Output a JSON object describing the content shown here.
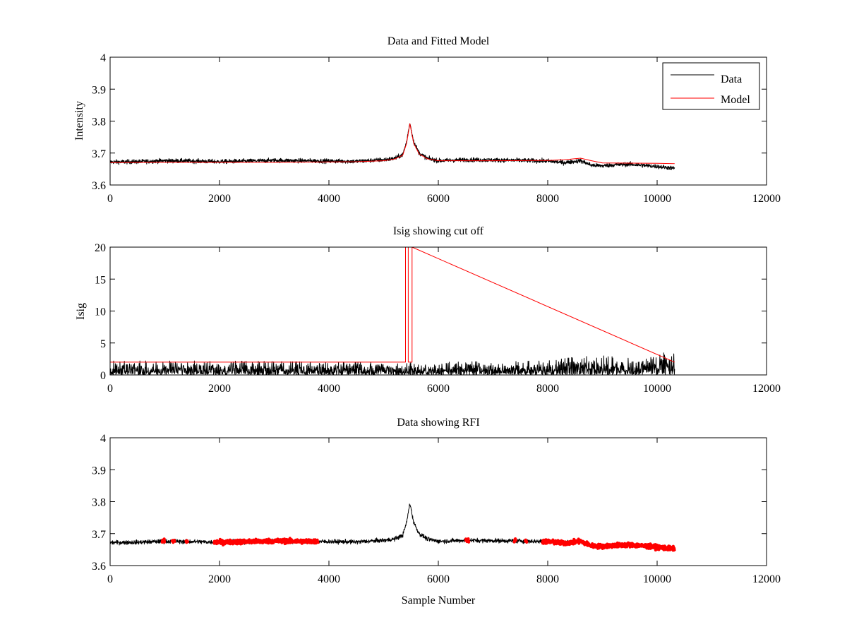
{
  "colors": {
    "data": "#000000",
    "model": "#ff0000",
    "axes": "#000000",
    "background": "#ffffff"
  },
  "chart_data": [
    {
      "type": "line",
      "title": "Data and Fitted Model",
      "xlabel": "",
      "ylabel": "Intensity",
      "xlim": [
        0,
        12000
      ],
      "ylim": [
        3.6,
        4.0
      ],
      "x_ticks": [
        0,
        2000,
        4000,
        6000,
        8000,
        10000,
        12000
      ],
      "y_ticks": [
        3.6,
        3.7,
        3.8,
        3.9,
        4.0
      ],
      "x_tick_labels": [
        "0",
        "2000",
        "4000",
        "6000",
        "8000",
        "10000",
        "12000"
      ],
      "y_tick_labels": [
        "3.6",
        "3.7",
        "3.8",
        "3.9",
        "4"
      ],
      "grid": false,
      "legend": {
        "position": "top-right",
        "entries": [
          "Data",
          "Model"
        ]
      },
      "series": [
        {
          "name": "Data",
          "color": "#000000",
          "x": [
            0,
            500,
            1000,
            1500,
            2000,
            2500,
            3000,
            3500,
            4000,
            4500,
            5000,
            5200,
            5350,
            5420,
            5480,
            5550,
            5650,
            5800,
            6000,
            6500,
            7000,
            7500,
            8000,
            8300,
            8600,
            8800,
            9000,
            9200,
            9500,
            10000,
            10320
          ],
          "y": [
            3.672,
            3.673,
            3.676,
            3.675,
            3.673,
            3.675,
            3.677,
            3.676,
            3.675,
            3.674,
            3.679,
            3.683,
            3.695,
            3.735,
            3.795,
            3.735,
            3.7,
            3.683,
            3.676,
            3.679,
            3.678,
            3.677,
            3.675,
            3.67,
            3.676,
            3.662,
            3.66,
            3.663,
            3.665,
            3.658,
            3.652
          ],
          "noise": 0.006
        },
        {
          "name": "Model",
          "color": "#ff0000",
          "x": [
            0,
            1000,
            2000,
            3000,
            4000,
            4500,
            5000,
            5200,
            5350,
            5420,
            5480,
            5550,
            5650,
            5800,
            6000,
            7000,
            8000,
            8300,
            8600,
            8800,
            9000,
            10000,
            10320
          ],
          "y": [
            3.67,
            3.671,
            3.671,
            3.671,
            3.672,
            3.673,
            3.676,
            3.681,
            3.693,
            3.73,
            3.792,
            3.73,
            3.697,
            3.682,
            3.676,
            3.676,
            3.677,
            3.679,
            3.684,
            3.676,
            3.669,
            3.668,
            3.667
          ]
        }
      ]
    },
    {
      "type": "line",
      "title": "Isig showing cut off",
      "xlabel": "",
      "ylabel": "Isig",
      "xlim": [
        0,
        12000
      ],
      "ylim": [
        0,
        20
      ],
      "x_ticks": [
        0,
        2000,
        4000,
        6000,
        8000,
        10000,
        12000
      ],
      "y_ticks": [
        0,
        5,
        10,
        15,
        20
      ],
      "x_tick_labels": [
        "0",
        "2000",
        "4000",
        "6000",
        "8000",
        "10000",
        "12000"
      ],
      "y_tick_labels": [
        "0",
        "5",
        "10",
        "15",
        "20"
      ],
      "grid": false,
      "series": [
        {
          "color": "#000000",
          "x": [
            0,
            2000,
            4000,
            6000,
            8000,
            8500,
            9000,
            9500,
            10000,
            10200,
            10320
          ],
          "y_band": [
            [
              0,
              2.2
            ],
            [
              0,
              2.2
            ],
            [
              0,
              2.0
            ],
            [
              0,
              2.0
            ],
            [
              0,
              2.2
            ],
            [
              0,
              2.8
            ],
            [
              0,
              3.0
            ],
            [
              0,
              2.6
            ],
            [
              0,
              2.8
            ],
            [
              0,
              4.0
            ],
            [
              0,
              3.2
            ]
          ]
        },
        {
          "color": "#ff0000",
          "cutoff": 2.0,
          "x": [
            0,
            5400,
            5400,
            5450,
            5450,
            5520,
            5520,
            10320
          ],
          "y": [
            2.0,
            2.0,
            20,
            20,
            2.0,
            2.0,
            20,
            2.0
          ]
        }
      ]
    },
    {
      "type": "line",
      "title": "Data showing RFI",
      "xlabel": "Sample Number",
      "ylabel": "",
      "xlim": [
        0,
        12000
      ],
      "ylim": [
        3.6,
        4.0
      ],
      "x_ticks": [
        0,
        2000,
        4000,
        6000,
        8000,
        10000,
        12000
      ],
      "y_ticks": [
        3.6,
        3.7,
        3.8,
        3.9,
        4.0
      ],
      "x_tick_labels": [
        "0",
        "2000",
        "4000",
        "6000",
        "8000",
        "10000",
        "12000"
      ],
      "y_tick_labels": [
        "3.6",
        "3.7",
        "3.8",
        "3.9",
        "4"
      ],
      "grid": false,
      "rfi_regions": [
        [
          950,
          1000
        ],
        [
          1130,
          1180
        ],
        [
          1380,
          1420
        ],
        [
          1900,
          3800
        ],
        [
          6500,
          6560
        ],
        [
          7380,
          7420
        ],
        [
          7580,
          7620
        ],
        [
          7900,
          10320
        ]
      ],
      "series": [
        {
          "color": "#000000",
          "x": [
            0,
            500,
            1000,
            1500,
            2000,
            2500,
            3000,
            3500,
            4000,
            4500,
            5000,
            5200,
            5350,
            5420,
            5480,
            5550,
            5650,
            5800,
            6000,
            6500,
            7000,
            7500,
            8000,
            8300,
            8600,
            8800,
            9000,
            9200,
            9500,
            10000,
            10320
          ],
          "y": [
            3.672,
            3.673,
            3.676,
            3.675,
            3.673,
            3.675,
            3.677,
            3.676,
            3.675,
            3.674,
            3.679,
            3.683,
            3.695,
            3.735,
            3.795,
            3.735,
            3.7,
            3.683,
            3.676,
            3.679,
            3.678,
            3.677,
            3.675,
            3.67,
            3.676,
            3.662,
            3.66,
            3.663,
            3.665,
            3.658,
            3.652
          ],
          "noise": 0.006
        }
      ]
    }
  ]
}
